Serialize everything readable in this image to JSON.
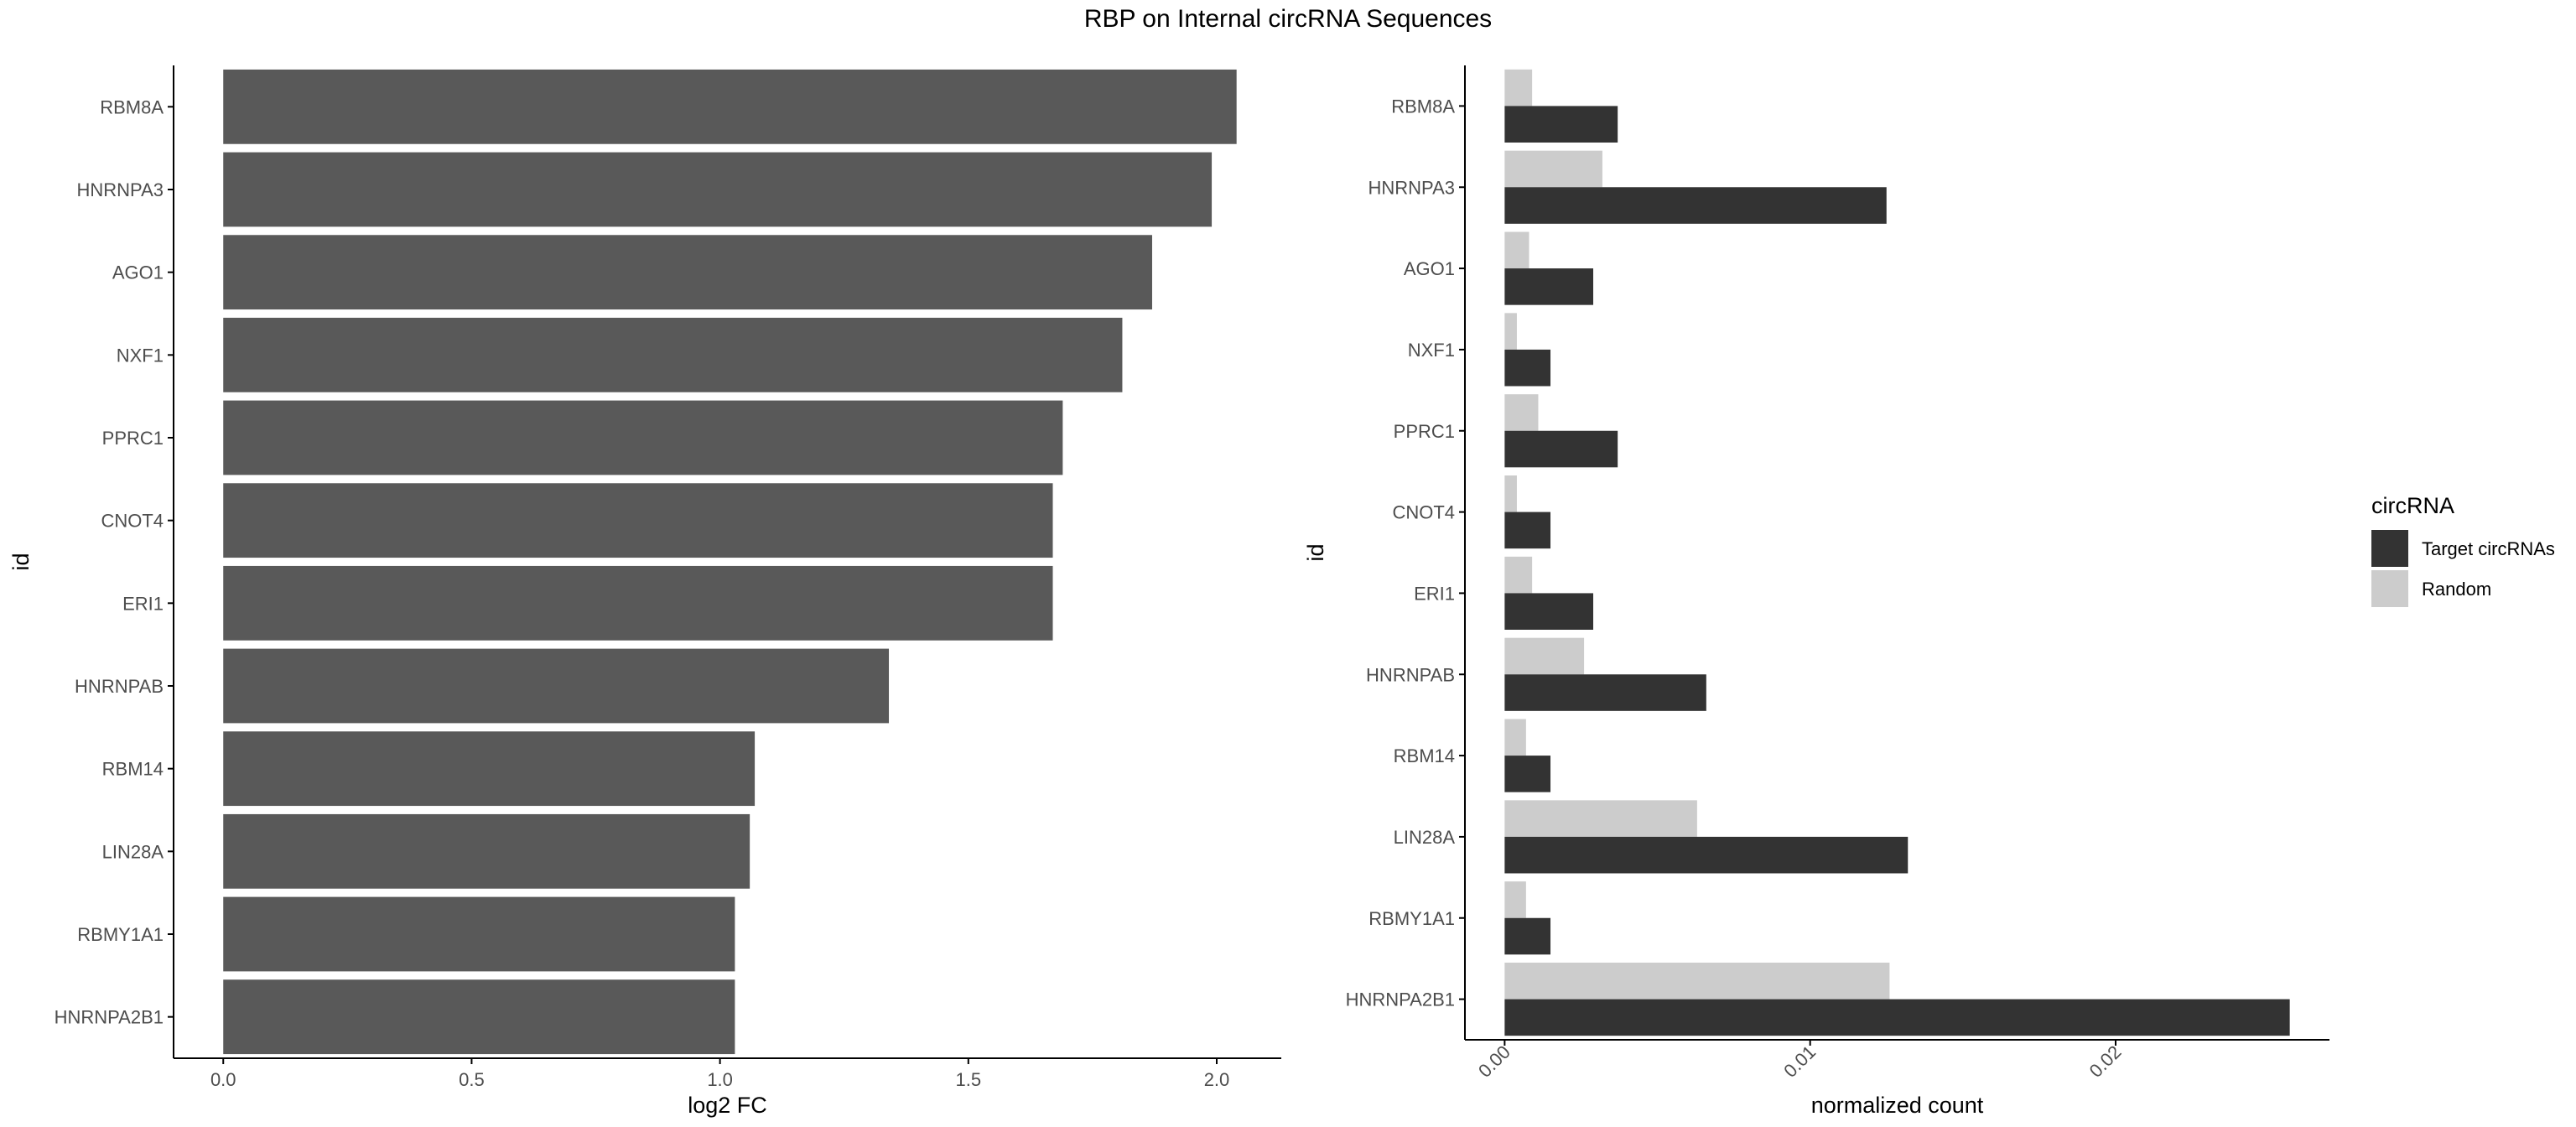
{
  "title": "RBP on Internal circRNA Sequences",
  "colors": {
    "bar": "#595959",
    "target": "#333333",
    "random": "#cccccc",
    "axis": "#000000",
    "tick_text": "#4d4d4d"
  },
  "chart_data": [
    {
      "type": "bar",
      "orientation": "horizontal",
      "categories": [
        "RBM8A",
        "HNRNPA3",
        "AGO1",
        "NXF1",
        "PPRC1",
        "CNOT4",
        "ERI1",
        "HNRNPAB",
        "RBM14",
        "LIN28A",
        "RBMY1A1",
        "HNRNPA2B1"
      ],
      "values": [
        2.04,
        1.99,
        1.87,
        1.81,
        1.69,
        1.67,
        1.67,
        1.34,
        1.07,
        1.06,
        1.03,
        1.03
      ],
      "xlabel": "log2 FC",
      "ylabel": "id",
      "xlim": [
        -0.1,
        2.13
      ],
      "xticks": [
        0.0,
        0.5,
        1.0,
        1.5,
        2.0
      ],
      "xtick_labels": [
        "0.0",
        "0.5",
        "1.0",
        "1.5",
        "2.0"
      ],
      "grid": false
    },
    {
      "type": "bar",
      "orientation": "horizontal",
      "grouped": true,
      "categories": [
        "RBM8A",
        "HNRNPA3",
        "AGO1",
        "NXF1",
        "PPRC1",
        "CNOT4",
        "ERI1",
        "HNRNPAB",
        "RBM14",
        "LIN28A",
        "RBMY1A1",
        "HNRNPA2B1"
      ],
      "series": [
        {
          "name": "Target circRNAs",
          "values": [
            0.0037,
            0.0125,
            0.0029,
            0.0015,
            0.0037,
            0.0015,
            0.0029,
            0.0066,
            0.0015,
            0.0132,
            0.0015,
            0.0257
          ]
        },
        {
          "name": "Random",
          "values": [
            0.0009,
            0.0032,
            0.0008,
            0.0004,
            0.0011,
            0.0004,
            0.0009,
            0.0026,
            0.0007,
            0.0063,
            0.0007,
            0.0126
          ]
        }
      ],
      "xlabel": "normalized count",
      "ylabel": "id",
      "xlim": [
        -0.0013,
        0.027
      ],
      "xticks": [
        0.0,
        0.01,
        0.02
      ],
      "xtick_labels": [
        "0.00",
        "0.01",
        "0.02"
      ],
      "legend_title": "circRNA",
      "legend_position": "right",
      "grid": false
    }
  ]
}
